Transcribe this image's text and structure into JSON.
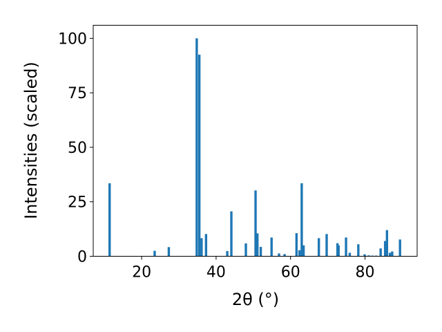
{
  "chart_data": {
    "type": "bar",
    "title": "",
    "xlabel": "2θ (°)",
    "ylabel": "Intensities (scaled)",
    "xlim": [
      7,
      94
    ],
    "ylim": [
      0,
      106
    ],
    "xticks": [
      20,
      40,
      60,
      80
    ],
    "yticks": [
      0,
      25,
      50,
      75,
      100
    ],
    "grid": false,
    "bar_color": "#1f77b4",
    "x": [
      11.4,
      23.5,
      27.3,
      34.8,
      35.5,
      36.1,
      37.3,
      43.0,
      44.1,
      48.0,
      50.6,
      51.1,
      52.0,
      54.9,
      56.9,
      58.4,
      61.6,
      62.4,
      63.0,
      63.5,
      67.6,
      69.7,
      72.6,
      72.9,
      74.9,
      75.9,
      78.2,
      79.9,
      81.0,
      82.0,
      83.0,
      84.2,
      85.4,
      85.9,
      86.7,
      87.3,
      89.4
    ],
    "values": [
      33.5,
      2.5,
      4.2,
      100,
      92.5,
      8.3,
      10.2,
      2.4,
      20.6,
      5.9,
      30.2,
      10.5,
      4.3,
      8.6,
      1.3,
      1.0,
      10.6,
      2.8,
      33.5,
      5.0,
      8.3,
      10.2,
      6.0,
      5.0,
      8.6,
      1.6,
      5.5,
      0.9,
      0.4,
      0.3,
      0.3,
      3.6,
      7.0,
      12.0,
      1.6,
      2.2,
      7.7
    ]
  }
}
